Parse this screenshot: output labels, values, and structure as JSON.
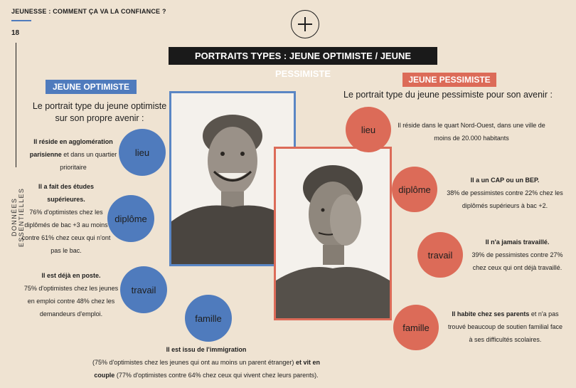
{
  "header": {
    "running_title": "JEUNESSE : COMMENT ÇA VA LA CONFIANCE ?",
    "page_number": "18",
    "side_label": "DONNÉES ESSENTIELLES",
    "plus_icon": "plus-icon"
  },
  "banner_title": "PORTRAITS TYPES : JEUNE OPTIMISTE / JEUNE PESSIMISTE",
  "optimist": {
    "tag": "JEUNE OPTIMISTE",
    "subtitle_line1": "Le portrait type du jeune optimiste",
    "subtitle_line2": "sur son propre avenir :",
    "lieu": {
      "label": "lieu",
      "bold1": "Il réside en agglomération parisienne",
      "rest1": " et dans un quartier prioritaire"
    },
    "diplome": {
      "label": "diplôme",
      "bold1": "Il a fait des études supérieures.",
      "rest1": "76% d'optimistes chez les diplômés de bac +3 au moins contre 61% chez ceux qui n'ont pas le bac."
    },
    "travail": {
      "label": "travail",
      "bold1": "Il est déjà en poste.",
      "rest1": "75% d'optimistes chez les jeunes en emploi contre 48% chez les demandeurs d'emploi."
    },
    "famille": {
      "label": "famille",
      "bold1": "Il est issu de l'immigration",
      "rest1": "(75% d'optimistes chez les jeunes qui ont au moins un parent étranger)",
      "bold2": " et vit en couple",
      "rest2": " (77% d'optimistes contre 64% chez ceux qui vivent chez leurs parents)."
    }
  },
  "pessimist": {
    "tag": "JEUNE PESSIMISTE",
    "subtitle": "Le portrait type du jeune pessimiste pour son avenir :",
    "lieu": {
      "label": "lieu",
      "rest1": "Il réside dans le quart Nord-Ouest, dans une ville de moins de 20.000 habitants"
    },
    "diplome": {
      "label": "diplôme",
      "bold1": "Il a un CAP ou un BEP.",
      "rest1": "38% de pessimistes contre 22% chez les diplômés supérieurs à bac +2."
    },
    "travail": {
      "label": "travail",
      "bold1": "Il n'a jamais travaillé.",
      "rest1": "39% de pessimistes contre 27% chez ceux qui ont déjà travaillé."
    },
    "famille": {
      "label": "famille",
      "bold1": "Il habite chez ses parents",
      "rest1": " et n'a pas trouvé beaucoup de soutien familial face à ses difficultés scolaires."
    }
  },
  "colors": {
    "blue": "#4f7bbd",
    "red": "#dc6b58",
    "background": "#efe3d2"
  }
}
